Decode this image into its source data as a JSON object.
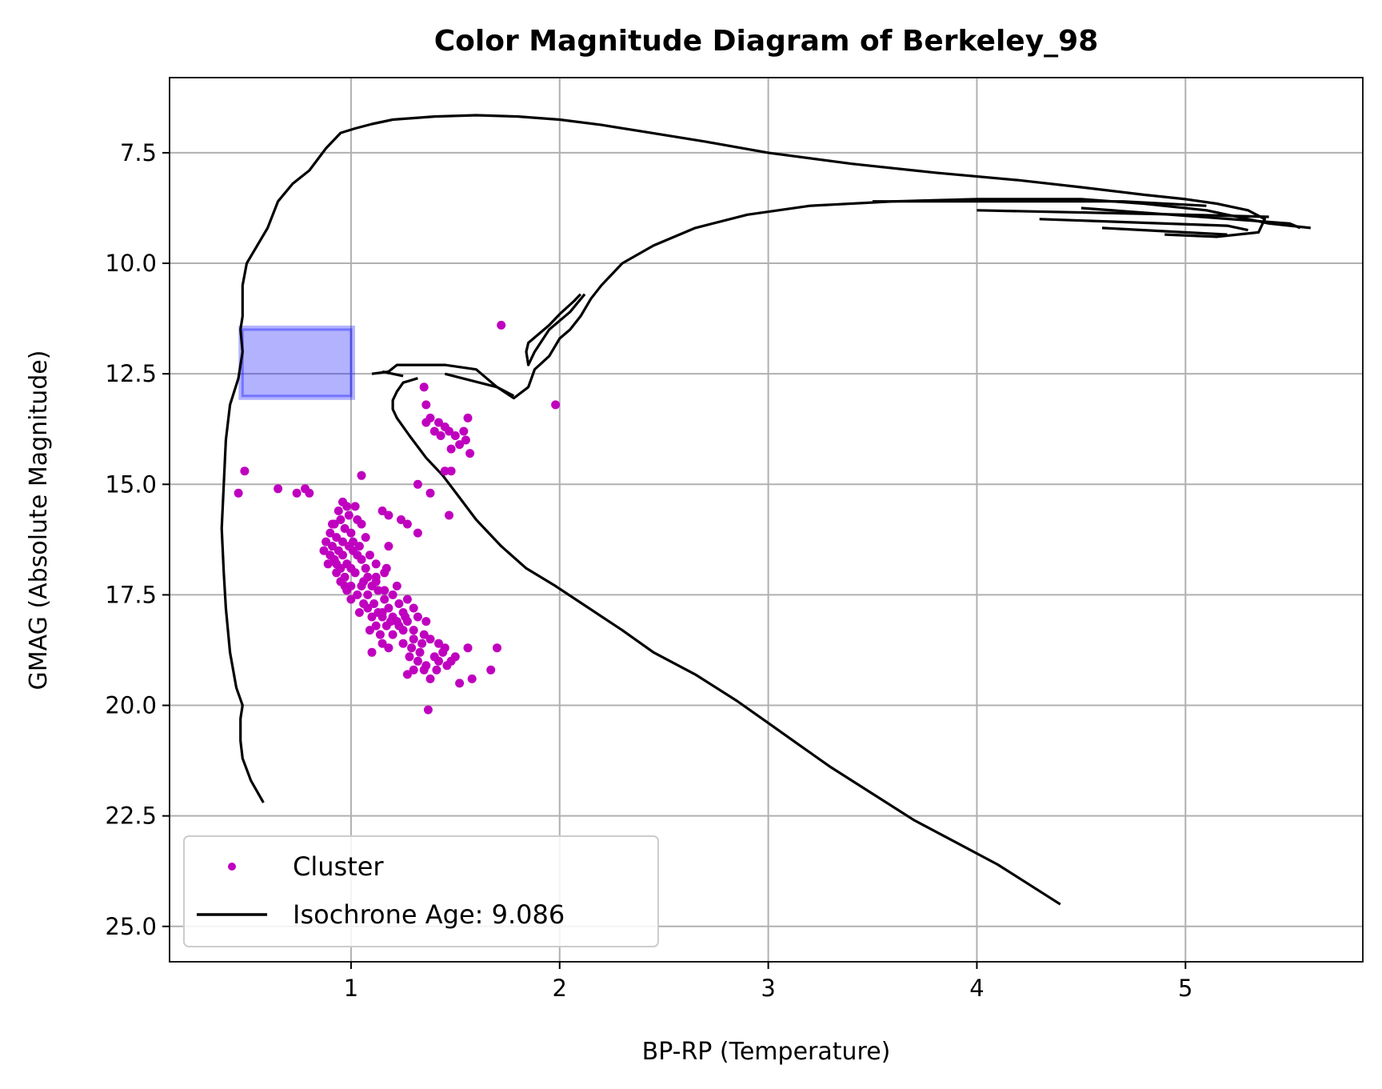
{
  "chart_data": {
    "type": "scatter",
    "title": "Color Magnitude Diagram of Berkeley_98",
    "xlabel": "BP-RP (Temperature)",
    "ylabel": "GMAG (Absolute Magnitude)",
    "xlim": [
      0.13,
      5.85
    ],
    "ylim": [
      25.8,
      5.8
    ],
    "y_inverted": true,
    "xticks": [
      1,
      2,
      3,
      4,
      5
    ],
    "xtick_labels": [
      "1",
      "2",
      "3",
      "4",
      "5"
    ],
    "yticks": [
      7.5,
      10.0,
      12.5,
      15.0,
      17.5,
      20.0,
      22.5,
      25.0
    ],
    "ytick_labels": [
      "7.5",
      "10.0",
      "12.5",
      "15.0",
      "17.5",
      "20.0",
      "22.5",
      "25.0"
    ],
    "grid": true,
    "legend_position": "lower-left",
    "colors": {
      "cluster": "#bf00bf",
      "isochrone": "#000000",
      "box": "#0000ff"
    },
    "highlight_box": {
      "x": [
        0.48,
        1.0
      ],
      "y": [
        11.5,
        13.0
      ]
    },
    "series": [
      {
        "name": "Cluster",
        "kind": "scatter",
        "points": [
          [
            1.72,
            11.4
          ],
          [
            1.98,
            13.2
          ],
          [
            1.35,
            12.8
          ],
          [
            1.36,
            13.2
          ],
          [
            1.38,
            13.5
          ],
          [
            1.36,
            13.6
          ],
          [
            1.4,
            13.8
          ],
          [
            1.45,
            13.7
          ],
          [
            1.42,
            13.6
          ],
          [
            1.47,
            13.8
          ],
          [
            1.5,
            13.9
          ],
          [
            1.52,
            14.1
          ],
          [
            1.48,
            14.2
          ],
          [
            1.55,
            14.0
          ],
          [
            1.57,
            14.3
          ],
          [
            1.56,
            13.5
          ],
          [
            1.54,
            13.8
          ],
          [
            1.45,
            14.7
          ],
          [
            1.48,
            14.7
          ],
          [
            1.43,
            13.9
          ],
          [
            0.49,
            14.7
          ],
          [
            0.46,
            15.2
          ],
          [
            0.65,
            15.1
          ],
          [
            0.74,
            15.2
          ],
          [
            0.78,
            15.1
          ],
          [
            0.8,
            15.2
          ],
          [
            1.05,
            14.8
          ],
          [
            1.32,
            15.0
          ],
          [
            1.38,
            15.2
          ],
          [
            1.47,
            15.7
          ],
          [
            1.15,
            15.6
          ],
          [
            1.18,
            15.7
          ],
          [
            1.24,
            15.8
          ],
          [
            1.27,
            15.9
          ],
          [
            1.32,
            16.1
          ],
          [
            1.18,
            16.4
          ],
          [
            0.96,
            15.4
          ],
          [
            0.98,
            15.5
          ],
          [
            0.94,
            15.6
          ],
          [
            0.99,
            15.7
          ],
          [
            0.95,
            15.8
          ],
          [
            0.92,
            15.9
          ],
          [
            0.97,
            16.0
          ],
          [
            1.0,
            16.1
          ],
          [
            0.9,
            16.1
          ],
          [
            0.93,
            16.2
          ],
          [
            0.96,
            16.3
          ],
          [
            0.88,
            16.3
          ],
          [
            0.91,
            16.4
          ],
          [
            0.99,
            16.4
          ],
          [
            0.87,
            16.5
          ],
          [
            0.94,
            16.5
          ],
          [
            1.01,
            16.5
          ],
          [
            0.9,
            16.6
          ],
          [
            0.96,
            16.6
          ],
          [
            1.03,
            16.6
          ],
          [
            0.92,
            16.7
          ],
          [
            0.98,
            16.8
          ],
          [
            0.89,
            16.8
          ],
          [
            1.05,
            16.7
          ],
          [
            0.95,
            16.9
          ],
          [
            1.0,
            16.9
          ],
          [
            1.07,
            16.9
          ],
          [
            0.93,
            17.0
          ],
          [
            0.97,
            17.1
          ],
          [
            1.02,
            17.0
          ],
          [
            1.08,
            17.1
          ],
          [
            0.95,
            17.2
          ],
          [
            1.0,
            17.3
          ],
          [
            1.05,
            17.3
          ],
          [
            1.1,
            17.3
          ],
          [
            0.98,
            17.4
          ],
          [
            1.03,
            17.5
          ],
          [
            1.08,
            17.5
          ],
          [
            1.13,
            17.4
          ],
          [
            1.0,
            17.6
          ],
          [
            1.06,
            17.7
          ],
          [
            1.11,
            17.7
          ],
          [
            1.16,
            17.6
          ],
          [
            1.08,
            17.8
          ],
          [
            1.13,
            17.9
          ],
          [
            1.18,
            17.8
          ],
          [
            1.1,
            18.0
          ],
          [
            1.15,
            18.0
          ],
          [
            1.2,
            18.0
          ],
          [
            1.25,
            17.9
          ],
          [
            1.12,
            18.2
          ],
          [
            1.17,
            18.2
          ],
          [
            1.22,
            18.1
          ],
          [
            1.27,
            18.1
          ],
          [
            1.32,
            18.0
          ],
          [
            1.36,
            18.1
          ],
          [
            1.2,
            18.4
          ],
          [
            1.25,
            18.3
          ],
          [
            1.3,
            18.3
          ],
          [
            1.15,
            18.6
          ],
          [
            1.05,
            15.9
          ],
          [
            1.07,
            16.2
          ],
          [
            1.04,
            16.4
          ],
          [
            1.09,
            16.6
          ],
          [
            1.12,
            16.8
          ],
          [
            1.16,
            17.0
          ],
          [
            1.17,
            16.9
          ],
          [
            1.02,
            15.5
          ],
          [
            1.03,
            15.8
          ],
          [
            1.01,
            16.3
          ],
          [
            1.06,
            17.2
          ],
          [
            1.12,
            17.2
          ],
          [
            1.2,
            17.5
          ],
          [
            1.23,
            17.7
          ],
          [
            1.27,
            17.6
          ],
          [
            1.3,
            17.8
          ],
          [
            1.35,
            18.4
          ],
          [
            1.18,
            18.7
          ],
          [
            1.1,
            18.8
          ],
          [
            1.25,
            18.6
          ],
          [
            1.3,
            18.5
          ],
          [
            1.28,
            18.9
          ],
          [
            1.32,
            19.0
          ],
          [
            1.36,
            19.1
          ],
          [
            1.4,
            18.9
          ],
          [
            1.44,
            18.8
          ],
          [
            1.38,
            18.5
          ],
          [
            1.42,
            18.6
          ],
          [
            1.45,
            18.7
          ],
          [
            1.3,
            19.2
          ],
          [
            1.35,
            19.2
          ],
          [
            1.38,
            19.4
          ],
          [
            1.42,
            19.0
          ],
          [
            1.48,
            19.0
          ],
          [
            1.46,
            19.1
          ],
          [
            1.5,
            18.9
          ],
          [
            1.52,
            19.5
          ],
          [
            1.58,
            19.4
          ],
          [
            1.56,
            18.7
          ],
          [
            1.7,
            18.7
          ],
          [
            1.67,
            19.2
          ],
          [
            1.27,
            19.3
          ],
          [
            1.37,
            20.1
          ],
          [
            1.15,
            17.9
          ],
          [
            1.12,
            17.1
          ],
          [
            0.91,
            15.9
          ],
          [
            0.93,
            16.8
          ],
          [
            0.97,
            17.3
          ],
          [
            1.04,
            17.9
          ],
          [
            1.09,
            18.3
          ],
          [
            1.14,
            18.4
          ],
          [
            1.19,
            18.1
          ],
          [
            1.23,
            18.2
          ],
          [
            1.29,
            18.7
          ],
          [
            1.33,
            18.8
          ],
          [
            1.34,
            18.6
          ],
          [
            1.41,
            19.2
          ],
          [
            1.22,
            17.3
          ],
          [
            1.16,
            17.4
          ],
          [
            1.26,
            18.0
          ]
        ]
      },
      {
        "name": "Isochrone Age: 9.086",
        "kind": "line",
        "paths": [
          [
            [
              0.58,
              22.2
            ],
            [
              0.52,
              21.7
            ],
            [
              0.48,
              21.2
            ],
            [
              0.47,
              20.8
            ],
            [
              0.47,
              20.3
            ],
            [
              0.48,
              20.0
            ],
            [
              0.45,
              19.6
            ],
            [
              0.42,
              18.8
            ],
            [
              0.4,
              17.8
            ],
            [
              0.39,
              17.0
            ],
            [
              0.38,
              16.0
            ],
            [
              0.39,
              15.0
            ],
            [
              0.4,
              14.0
            ],
            [
              0.42,
              13.2
            ],
            [
              0.46,
              12.6
            ],
            [
              0.48,
              12.0
            ],
            [
              0.47,
              11.5
            ],
            [
              0.48,
              11.2
            ],
            [
              0.48,
              10.5
            ],
            [
              0.5,
              10.0
            ],
            [
              0.55,
              9.6
            ],
            [
              0.6,
              9.2
            ],
            [
              0.65,
              8.6
            ],
            [
              0.72,
              8.2
            ],
            [
              0.8,
              7.9
            ],
            [
              0.88,
              7.4
            ],
            [
              0.95,
              7.05
            ],
            [
              1.02,
              6.95
            ],
            [
              1.1,
              6.85
            ],
            [
              1.2,
              6.75
            ],
            [
              1.4,
              6.68
            ],
            [
              1.6,
              6.65
            ],
            [
              1.8,
              6.68
            ],
            [
              2.0,
              6.75
            ],
            [
              2.2,
              6.87
            ],
            [
              2.4,
              7.02
            ],
            [
              2.7,
              7.25
            ],
            [
              3.0,
              7.5
            ],
            [
              3.4,
              7.75
            ],
            [
              3.8,
              7.95
            ],
            [
              4.2,
              8.12
            ],
            [
              4.5,
              8.28
            ],
            [
              4.8,
              8.45
            ],
            [
              5.0,
              8.55
            ],
            [
              5.15,
              8.65
            ],
            [
              5.3,
              8.8
            ],
            [
              5.38,
              9.0
            ],
            [
              5.35,
              9.3
            ],
            [
              5.15,
              9.4
            ],
            [
              4.9,
              9.35
            ]
          ],
          [
            [
              1.1,
              12.5
            ],
            [
              1.18,
              12.45
            ],
            [
              1.22,
              12.3
            ],
            [
              1.45,
              12.3
            ],
            [
              1.6,
              12.4
            ],
            [
              1.7,
              12.8
            ],
            [
              1.78,
              13.05
            ],
            [
              1.85,
              12.8
            ],
            [
              1.88,
              12.4
            ],
            [
              1.95,
              12.1
            ],
            [
              2.0,
              11.7
            ],
            [
              2.05,
              11.5
            ],
            [
              2.1,
              11.2
            ],
            [
              2.15,
              10.8
            ],
            [
              2.2,
              10.5
            ],
            [
              2.3,
              10.0
            ],
            [
              2.45,
              9.6
            ],
            [
              2.65,
              9.2
            ],
            [
              2.9,
              8.9
            ],
            [
              3.2,
              8.7
            ],
            [
              3.6,
              8.6
            ],
            [
              4.0,
              8.55
            ],
            [
              4.5,
              8.55
            ],
            [
              4.8,
              8.65
            ],
            [
              5.1,
              8.8
            ],
            [
              5.4,
              9.1
            ],
            [
              5.6,
              9.2
            ]
          ],
          [
            [
              2.12,
              10.7
            ],
            [
              2.05,
              11.1
            ],
            [
              1.95,
              11.5
            ],
            [
              1.88,
              12.0
            ],
            [
              1.85,
              12.3
            ],
            [
              1.84,
              12.0
            ],
            [
              1.85,
              11.8
            ],
            [
              1.9,
              11.6
            ],
            [
              1.95,
              11.4
            ],
            [
              2.0,
              11.15
            ],
            [
              2.07,
              10.85
            ],
            [
              2.1,
              10.7
            ]
          ],
          [
            [
              1.32,
              12.6
            ],
            [
              1.25,
              12.7
            ],
            [
              1.22,
              12.9
            ],
            [
              1.2,
              13.1
            ],
            [
              1.2,
              13.3
            ],
            [
              1.22,
              13.5
            ],
            [
              1.28,
              13.9
            ],
            [
              1.36,
              14.4
            ],
            [
              1.44,
              14.8
            ],
            [
              1.52,
              15.3
            ],
            [
              1.6,
              15.8
            ],
            [
              1.72,
              16.4
            ],
            [
              1.84,
              16.9
            ],
            [
              1.98,
              17.3
            ],
            [
              2.14,
              17.8
            ],
            [
              2.3,
              18.3
            ],
            [
              2.45,
              18.8
            ],
            [
              2.65,
              19.3
            ],
            [
              2.85,
              19.9
            ],
            [
              3.0,
              20.4
            ],
            [
              3.15,
              20.9
            ],
            [
              3.3,
              21.4
            ],
            [
              3.5,
              22.0
            ],
            [
              3.7,
              22.6
            ],
            [
              3.9,
              23.1
            ],
            [
              4.1,
              23.6
            ],
            [
              4.4,
              24.5
            ]
          ],
          [
            [
              4.5,
              8.75
            ],
            [
              5.5,
              9.1
            ],
            [
              5.55,
              9.2
            ]
          ],
          [
            [
              4.3,
              9.0
            ],
            [
              5.2,
              9.15
            ],
            [
              5.3,
              9.25
            ]
          ],
          [
            [
              3.5,
              8.6
            ],
            [
              4.7,
              8.6
            ],
            [
              5.1,
              8.7
            ]
          ],
          [
            [
              4.0,
              8.8
            ],
            [
              5.0,
              8.9
            ],
            [
              5.4,
              8.95
            ]
          ],
          [
            [
              4.6,
              9.2
            ],
            [
              5.2,
              9.35
            ]
          ],
          [
            [
              1.45,
              12.5
            ],
            [
              1.7,
              12.8
            ],
            [
              1.78,
              13.0
            ]
          ],
          [
            [
              1.15,
              12.45
            ],
            [
              1.25,
              12.55
            ]
          ]
        ]
      }
    ]
  }
}
